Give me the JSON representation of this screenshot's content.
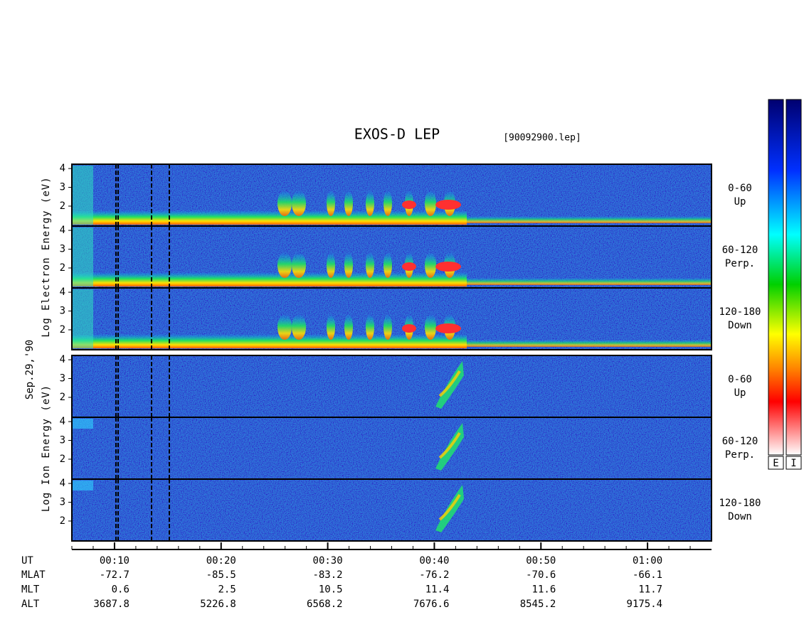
{
  "chart_data": {
    "type": "spectrogram",
    "title": "EXOS-D LEP",
    "subtitle": "[90092900.lep]",
    "date_label": "Sep.29,'90",
    "ylim": [
      0.94,
      4.23
    ],
    "yticks": [
      2,
      3,
      4
    ],
    "xlim": [
      6,
      66
    ],
    "xticks": [
      {
        "value": 10,
        "label": "00:10"
      },
      {
        "value": 20,
        "label": "00:20"
      },
      {
        "value": 30,
        "label": "00:30"
      },
      {
        "value": 40,
        "label": "00:40"
      },
      {
        "value": 50,
        "label": "00:50"
      },
      {
        "value": 60,
        "label": "01:00"
      }
    ],
    "groups": [
      {
        "ylabel": "Log Electron Energy (eV)",
        "panels": [
          {
            "label": [
              "0-60",
              "Up"
            ]
          },
          {
            "label": [
              "60-120",
              "Perp."
            ]
          },
          {
            "label": [
              "120-180",
              "Down"
            ]
          }
        ]
      },
      {
        "ylabel": "Log Ion Energy (eV)",
        "panels": [
          {
            "label": [
              "0-60",
              "Up"
            ]
          },
          {
            "label": [
              "60-120",
              "Perp."
            ]
          },
          {
            "label": [
              "120-180",
              "Down"
            ]
          }
        ]
      }
    ],
    "orbit": {
      "x_label": "UT",
      "rows": [
        {
          "name": "MLAT",
          "values": [
            -72.7,
            -85.5,
            -83.2,
            -76.2,
            -70.6,
            -66.1
          ]
        },
        {
          "name": "MLT",
          "values": [
            0.6,
            2.5,
            10.5,
            11.4,
            11.6,
            11.7
          ]
        },
        {
          "name": "ALT",
          "values": [
            3687.8,
            5226.8,
            6568.2,
            7676.6,
            8545.2,
            9175.4
          ]
        }
      ]
    },
    "colorbar_labels": [
      "E",
      "I"
    ]
  }
}
